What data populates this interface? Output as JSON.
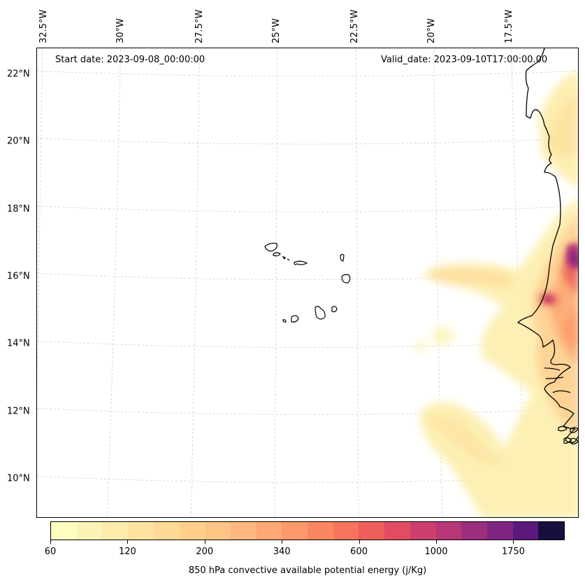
{
  "map": {
    "annotations": {
      "start_date": "Start date: 2023-09-08_00:00:00",
      "valid_date": "Valid_date: 2023-09-10T17:00:00.00"
    },
    "lon_labels": [
      "32.5°W",
      "30°W",
      "27.5°W",
      "25°W",
      "22.5°W",
      "20°W",
      "17.5°W"
    ],
    "lat_labels": [
      "22°N",
      "20°N",
      "18°N",
      "16°N",
      "14°N",
      "12°N",
      "10°N"
    ],
    "gridlines": true,
    "features": [
      "coastline",
      "cape-verde-islands",
      "west-africa-coast"
    ]
  },
  "colorbar": {
    "label": "850 hPa convective available potential energy (j/Kg)",
    "tick_labels": [
      "60",
      "120",
      "200",
      "340",
      "600",
      "1000",
      "1750"
    ],
    "colors": [
      "#fcfdbf",
      "#fcf4b6",
      "#fdebab",
      "#fde2a0",
      "#feda96",
      "#fed08c",
      "#fec585",
      "#feb77e",
      "#fea873",
      "#fd9869",
      "#fb8762",
      "#f6745c",
      "#ee5e5b",
      "#e24c62",
      "#cd3f6d",
      "#b73779",
      "#9c2e7f",
      "#7f2582",
      "#5b1a7c",
      "#180f3e"
    ]
  }
}
